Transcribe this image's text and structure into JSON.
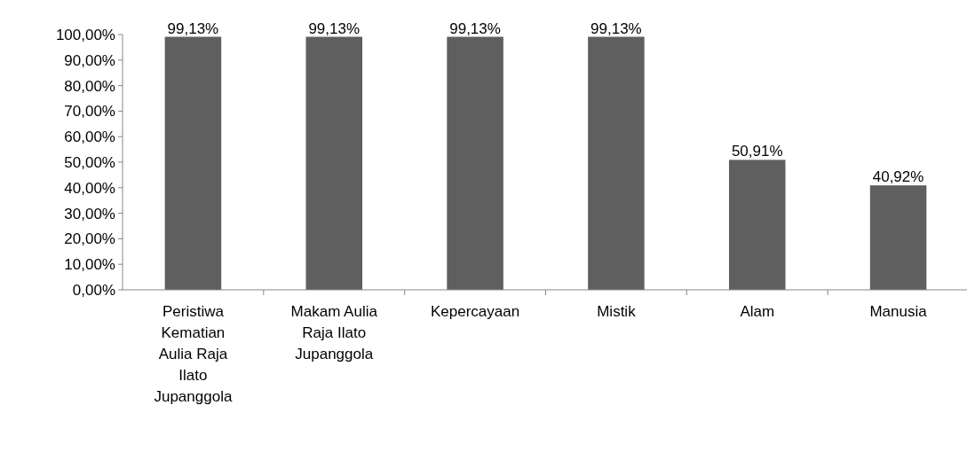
{
  "chart_data": {
    "type": "bar",
    "categories": [
      "Peristiwa Kematian Aulia Raja Ilato Jupanggola",
      "Makam Aulia Raja Ilato Jupanggola",
      "Kepercayaan",
      "Mistik",
      "Alam",
      "Manusia"
    ],
    "values": [
      99.13,
      99.13,
      99.13,
      99.13,
      50.91,
      40.92
    ],
    "value_labels": [
      "99,13%",
      "99,13%",
      "99,13%",
      "99,13%",
      "50,91%",
      "40,92%"
    ],
    "color": "#5f5f5f",
    "ylim": [
      0,
      100
    ],
    "yticks": [
      {
        "value": 0,
        "label": "0,00%"
      },
      {
        "value": 10,
        "label": "10,00%"
      },
      {
        "value": 20,
        "label": "20,00%"
      },
      {
        "value": 30,
        "label": "30,00%"
      },
      {
        "value": 40,
        "label": "40,00%"
      },
      {
        "value": 50,
        "label": "50,00%"
      },
      {
        "value": 60,
        "label": "60,00%"
      },
      {
        "value": 70,
        "label": "70,00%"
      },
      {
        "value": 80,
        "label": "80,00%"
      },
      {
        "value": 90,
        "label": "90,00%"
      },
      {
        "value": 100,
        "label": "100,00%"
      }
    ],
    "grid": false
  }
}
